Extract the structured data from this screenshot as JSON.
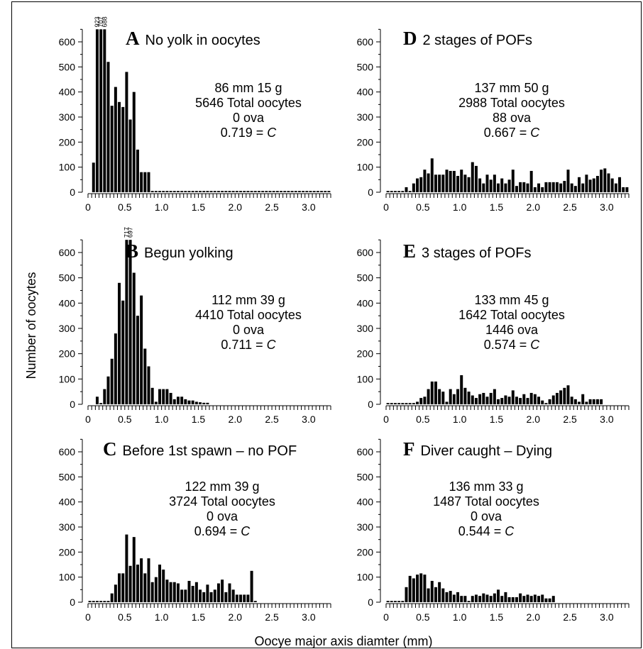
{
  "figure": {
    "ylabel": "Number of oocytes",
    "xlabel": "Oocye major axis diamter (mm)"
  },
  "chart_data": [
    {
      "type": "bar",
      "panel": "A",
      "title": "No yolk in oocytes",
      "info": [
        "86 mm  15 g",
        "5646 Total oocytes",
        "0 ova"
      ],
      "c_value": "0.719 = ",
      "c_symbol": "C",
      "ylim": [
        0,
        650
      ],
      "yticks": [
        0,
        100,
        200,
        300,
        400,
        500,
        600
      ],
      "xlim": [
        0,
        3.3
      ],
      "xticks": [
        "0",
        "0.5",
        "1.0",
        "1.5",
        "2.0",
        "2.5",
        "3.0"
      ],
      "bin_width": 0.05,
      "x": [
        0.05,
        0.1,
        0.15,
        0.2,
        0.25,
        0.3,
        0.35,
        0.4,
        0.45,
        0.5,
        0.55,
        0.6,
        0.65,
        0.7,
        0.75,
        0.8,
        0.85,
        0.9,
        0.95,
        1.0,
        1.05,
        1.1,
        1.15,
        1.2,
        1.25,
        1.3,
        1.35,
        1.4,
        1.45,
        1.5,
        1.55,
        1.6,
        1.65,
        1.7,
        1.75,
        1.8,
        1.85,
        1.9,
        1.95,
        2.0,
        2.05,
        2.1,
        2.15,
        2.2,
        2.25,
        2.3,
        2.35,
        2.4,
        2.45,
        2.5,
        2.55,
        2.6,
        2.65,
        2.7,
        2.75,
        2.8,
        2.85,
        2.9,
        2.95,
        3.0,
        3.05,
        3.1,
        3.15,
        3.2,
        3.25
      ],
      "values": [
        118,
        923,
        707,
        688,
        520,
        345,
        420,
        360,
        340,
        480,
        290,
        400,
        170,
        80,
        80,
        80,
        5,
        5,
        5,
        5,
        5,
        5,
        5,
        5,
        5,
        5,
        5,
        5,
        5,
        5,
        5,
        5,
        5,
        5,
        5,
        5,
        5,
        5,
        5,
        5,
        5,
        5,
        5,
        5,
        5,
        5,
        5,
        5,
        5,
        5,
        5,
        5,
        5,
        5,
        5,
        5,
        5,
        5,
        5,
        5,
        5,
        5,
        5,
        5,
        5
      ],
      "bar_labels": [
        {
          "x": 0.1,
          "text": "923"
        },
        {
          "x": 0.15,
          "text": "707"
        },
        {
          "x": 0.2,
          "text": "688"
        }
      ]
    },
    {
      "type": "bar",
      "panel": "B",
      "title": "Begun yolking",
      "info": [
        "112 mm  39 g",
        "4410 Total oocytes",
        "0 ova"
      ],
      "c_value": "0.711 = ",
      "c_symbol": "C",
      "ylim": [
        0,
        650
      ],
      "yticks": [
        0,
        100,
        200,
        300,
        400,
        500,
        600
      ],
      "xlim": [
        0,
        3.3
      ],
      "xticks": [
        "0",
        "0.5",
        "1.0",
        "1.5",
        "2.0",
        "2.5",
        "3.0"
      ],
      "bin_width": 0.05,
      "x": [
        0.1,
        0.15,
        0.2,
        0.25,
        0.3,
        0.35,
        0.4,
        0.45,
        0.5,
        0.55,
        0.6,
        0.65,
        0.7,
        0.75,
        0.8,
        0.85,
        0.9,
        0.95,
        1.0,
        1.05,
        1.1,
        1.15,
        1.2,
        1.25,
        1.3,
        1.35,
        1.4,
        1.45,
        1.5,
        1.55,
        1.6
      ],
      "values": [
        30,
        5,
        60,
        110,
        180,
        280,
        480,
        410,
        717,
        697,
        520,
        350,
        430,
        220,
        150,
        65,
        10,
        60,
        60,
        60,
        45,
        20,
        30,
        30,
        20,
        15,
        15,
        10,
        8,
        6,
        6
      ],
      "bar_labels": [
        {
          "x": 0.5,
          "text": "717"
        },
        {
          "x": 0.55,
          "text": "697"
        }
      ]
    },
    {
      "type": "bar",
      "panel": "C",
      "title": "Before 1st spawn – no POF",
      "info": [
        "122 mm  39 g",
        "3724 Total oocytes",
        "0 ova"
      ],
      "c_value": "0.694 = ",
      "c_symbol": "C",
      "ylim": [
        0,
        650
      ],
      "yticks": [
        0,
        100,
        200,
        300,
        400,
        500,
        600
      ],
      "xlim": [
        0,
        3.3
      ],
      "xticks": [
        "0",
        "0.5",
        "1.0",
        "1.5",
        "2.0",
        "2.5",
        "3.0"
      ],
      "bin_width": 0.05,
      "x": [
        0.0,
        0.05,
        0.1,
        0.15,
        0.2,
        0.25,
        0.3,
        0.35,
        0.4,
        0.45,
        0.5,
        0.55,
        0.6,
        0.65,
        0.7,
        0.75,
        0.8,
        0.85,
        0.9,
        0.95,
        1.0,
        1.05,
        1.1,
        1.15,
        1.2,
        1.25,
        1.3,
        1.35,
        1.4,
        1.45,
        1.5,
        1.55,
        1.6,
        1.65,
        1.7,
        1.75,
        1.8,
        1.85,
        1.9,
        1.95,
        2.0,
        2.05,
        2.1,
        2.15,
        2.2,
        2.25
      ],
      "values": [
        5,
        5,
        5,
        5,
        5,
        5,
        35,
        70,
        115,
        115,
        270,
        145,
        260,
        150,
        175,
        115,
        175,
        80,
        100,
        150,
        130,
        90,
        80,
        80,
        75,
        50,
        50,
        85,
        65,
        80,
        50,
        40,
        70,
        40,
        50,
        75,
        90,
        40,
        75,
        50,
        30,
        30,
        30,
        30,
        125,
        5
      ]
    },
    {
      "type": "bar",
      "panel": "D",
      "title": "2 stages of POFs",
      "info": [
        "137 mm  50 g",
        "2988 Total oocytes",
        "88 ova"
      ],
      "c_value": "0.667 = ",
      "c_symbol": "C",
      "ylim": [
        0,
        650
      ],
      "yticks": [
        0,
        100,
        200,
        300,
        400,
        500,
        600
      ],
      "xlim": [
        0,
        3.3
      ],
      "xticks": [
        "0",
        "0.5",
        "1.0",
        "1.5",
        "2.0",
        "2.5",
        "3.0"
      ],
      "bin_width": 0.05,
      "x": [
        0.0,
        0.05,
        0.1,
        0.15,
        0.2,
        0.25,
        0.3,
        0.35,
        0.4,
        0.45,
        0.5,
        0.55,
        0.6,
        0.65,
        0.7,
        0.75,
        0.8,
        0.85,
        0.9,
        0.95,
        1.0,
        1.05,
        1.1,
        1.15,
        1.2,
        1.25,
        1.3,
        1.35,
        1.4,
        1.45,
        1.5,
        1.55,
        1.6,
        1.65,
        1.7,
        1.75,
        1.8,
        1.85,
        1.9,
        1.95,
        2.0,
        2.05,
        2.1,
        2.15,
        2.2,
        2.25,
        2.3,
        2.35,
        2.4,
        2.45,
        2.5,
        2.55,
        2.6,
        2.65,
        2.7,
        2.75,
        2.8,
        2.85,
        2.9,
        2.95,
        3.0,
        3.05,
        3.1,
        3.15,
        3.2,
        3.25
      ],
      "values": [
        5,
        5,
        5,
        5,
        5,
        20,
        5,
        35,
        55,
        60,
        90,
        75,
        135,
        70,
        70,
        70,
        90,
        85,
        85,
        65,
        90,
        70,
        60,
        120,
        105,
        55,
        35,
        70,
        50,
        70,
        35,
        55,
        35,
        50,
        90,
        25,
        40,
        40,
        35,
        85,
        20,
        35,
        20,
        40,
        40,
        40,
        40,
        35,
        45,
        90,
        35,
        25,
        60,
        35,
        70,
        50,
        55,
        65,
        90,
        95,
        75,
        55,
        35,
        60,
        20,
        20
      ]
    },
    {
      "type": "bar",
      "panel": "E",
      "title": "3 stages of POFs",
      "info": [
        "133 mm  45 g",
        "1642 Total oocytes",
        "1446 ova"
      ],
      "c_value": "0.574 = ",
      "c_symbol": "C",
      "ylim": [
        0,
        650
      ],
      "yticks": [
        0,
        100,
        200,
        300,
        400,
        500,
        600
      ],
      "xlim": [
        0,
        3.3
      ],
      "xticks": [
        "0",
        "0.5",
        "1.0",
        "1.5",
        "2.0",
        "2.5",
        "3.0"
      ],
      "bin_width": 0.05,
      "x": [
        0.0,
        0.05,
        0.1,
        0.15,
        0.2,
        0.25,
        0.3,
        0.35,
        0.4,
        0.45,
        0.5,
        0.55,
        0.6,
        0.65,
        0.7,
        0.75,
        0.8,
        0.85,
        0.9,
        0.95,
        1.0,
        1.05,
        1.1,
        1.15,
        1.2,
        1.25,
        1.3,
        1.35,
        1.4,
        1.45,
        1.5,
        1.55,
        1.6,
        1.65,
        1.7,
        1.75,
        1.8,
        1.85,
        1.9,
        1.95,
        2.0,
        2.05,
        2.1,
        2.15,
        2.2,
        2.25,
        2.3,
        2.35,
        2.4,
        2.45,
        2.5,
        2.55,
        2.6,
        2.65,
        2.7,
        2.75,
        2.8,
        2.85,
        2.9
      ],
      "values": [
        5,
        5,
        5,
        5,
        5,
        5,
        5,
        5,
        10,
        25,
        30,
        60,
        90,
        90,
        60,
        50,
        10,
        60,
        40,
        60,
        115,
        65,
        50,
        35,
        25,
        40,
        45,
        30,
        45,
        60,
        20,
        25,
        35,
        30,
        55,
        30,
        25,
        40,
        25,
        45,
        40,
        30,
        15,
        5,
        20,
        35,
        45,
        55,
        65,
        75,
        30,
        20,
        10,
        40,
        10,
        20,
        20,
        20,
        20
      ]
    },
    {
      "type": "bar",
      "panel": "F",
      "title": "Diver caught – Dying",
      "info": [
        "136 mm  33 g",
        "1487 Total oocytes",
        "0 ova"
      ],
      "c_value": "0.544 = ",
      "c_symbol": "C",
      "ylim": [
        0,
        650
      ],
      "yticks": [
        0,
        100,
        200,
        300,
        400,
        500,
        600
      ],
      "xlim": [
        0,
        3.3
      ],
      "xticks": [
        "0",
        "0.5",
        "1.0",
        "1.5",
        "2.0",
        "2.5",
        "3.0"
      ],
      "bin_width": 0.05,
      "x": [
        0.0,
        0.05,
        0.1,
        0.15,
        0.2,
        0.25,
        0.3,
        0.35,
        0.4,
        0.45,
        0.5,
        0.55,
        0.6,
        0.65,
        0.7,
        0.75,
        0.8,
        0.85,
        0.9,
        0.95,
        1.0,
        1.05,
        1.1,
        1.15,
        1.2,
        1.25,
        1.3,
        1.35,
        1.4,
        1.45,
        1.5,
        1.55,
        1.6,
        1.65,
        1.7,
        1.75,
        1.8,
        1.85,
        1.9,
        1.95,
        2.0,
        2.05,
        2.1,
        2.15,
        2.2,
        2.25
      ],
      "values": [
        5,
        5,
        5,
        5,
        5,
        60,
        105,
        95,
        110,
        115,
        110,
        55,
        85,
        60,
        80,
        55,
        40,
        45,
        30,
        40,
        25,
        25,
        5,
        25,
        30,
        25,
        35,
        30,
        25,
        35,
        50,
        25,
        40,
        20,
        20,
        20,
        35,
        25,
        30,
        25,
        30,
        25,
        30,
        15,
        15,
        25
      ]
    }
  ]
}
